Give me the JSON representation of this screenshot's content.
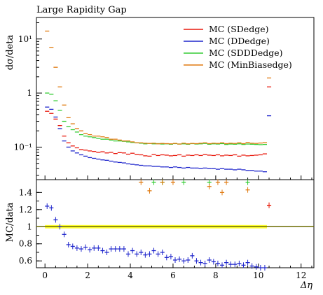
{
  "chart_data": {
    "type": "scatter",
    "title": "Large Rapidity Gap",
    "xlabel": "Δη",
    "xlim": [
      -0.4,
      12.6
    ],
    "xticks": [
      "0",
      "2",
      "4",
      "6",
      "8",
      "10",
      "12"
    ],
    "legend_position": "top-right",
    "main": {
      "ylabel": "dσ/deta",
      "yscale": "log",
      "ylim": [
        0.025,
        25
      ],
      "yticks": [
        "10⁻¹",
        "1",
        "10¹"
      ]
    },
    "ratio": {
      "ylabel": "MC/data",
      "ylim": [
        0.52,
        1.55
      ],
      "yticks": [
        "0.6",
        "0.8",
        "1",
        "1.2",
        "1.4"
      ],
      "reference_value": 1.0,
      "reference_color": "#6b6b00",
      "band_color": "#ffff33",
      "band_range": [
        0,
        10.4
      ]
    },
    "series": [
      {
        "name": "MC (SDedge)",
        "color": "#e8190d",
        "points": [
          [
            0.1,
            0.46
          ],
          [
            0.3,
            0.42
          ],
          [
            0.5,
            0.33
          ],
          [
            0.7,
            0.25
          ],
          [
            0.9,
            0.16
          ],
          [
            1.1,
            0.12
          ],
          [
            1.3,
            0.105
          ],
          [
            1.5,
            0.097
          ],
          [
            1.7,
            0.09
          ],
          [
            1.9,
            0.088
          ],
          [
            2.1,
            0.085
          ],
          [
            2.3,
            0.083
          ],
          [
            2.5,
            0.08
          ],
          [
            2.7,
            0.082
          ],
          [
            2.9,
            0.078
          ],
          [
            3.1,
            0.08
          ],
          [
            3.3,
            0.076
          ],
          [
            3.5,
            0.079
          ],
          [
            3.7,
            0.078
          ],
          [
            3.9,
            0.074
          ],
          [
            4.1,
            0.077
          ],
          [
            4.3,
            0.073
          ],
          [
            4.5,
            0.072
          ],
          [
            4.7,
            0.069
          ],
          [
            4.9,
            0.068
          ],
          [
            5.1,
            0.073
          ],
          [
            5.3,
            0.07
          ],
          [
            5.5,
            0.072
          ],
          [
            5.7,
            0.071
          ],
          [
            5.9,
            0.069
          ],
          [
            6.1,
            0.07
          ],
          [
            6.3,
            0.072
          ],
          [
            6.5,
            0.068
          ],
          [
            6.7,
            0.071
          ],
          [
            6.9,
            0.07
          ],
          [
            7.1,
            0.072
          ],
          [
            7.3,
            0.07
          ],
          [
            7.5,
            0.073
          ],
          [
            7.7,
            0.071
          ],
          [
            7.9,
            0.07
          ],
          [
            8.1,
            0.072
          ],
          [
            8.3,
            0.069
          ],
          [
            8.5,
            0.071
          ],
          [
            8.7,
            0.07
          ],
          [
            8.9,
            0.072
          ],
          [
            9.1,
            0.068
          ],
          [
            9.3,
            0.071
          ],
          [
            9.5,
            0.069
          ],
          [
            9.7,
            0.07
          ],
          [
            9.9,
            0.071
          ],
          [
            10.1,
            0.072
          ],
          [
            10.3,
            0.075
          ],
          [
            10.5,
            1.3
          ]
        ]
      },
      {
        "name": "MC (DDedge)",
        "color": "#1f26cc",
        "points": [
          [
            0.1,
            0.55
          ],
          [
            0.3,
            0.5
          ],
          [
            0.5,
            0.36
          ],
          [
            0.7,
            0.22
          ],
          [
            0.9,
            0.13
          ],
          [
            1.1,
            0.1
          ],
          [
            1.3,
            0.085
          ],
          [
            1.5,
            0.078
          ],
          [
            1.7,
            0.072
          ],
          [
            1.9,
            0.068
          ],
          [
            2.1,
            0.064
          ],
          [
            2.3,
            0.062
          ],
          [
            2.5,
            0.06
          ],
          [
            2.7,
            0.058
          ],
          [
            2.9,
            0.057
          ],
          [
            3.1,
            0.055
          ],
          [
            3.3,
            0.053
          ],
          [
            3.5,
            0.052
          ],
          [
            3.7,
            0.051
          ],
          [
            3.9,
            0.049
          ],
          [
            4.1,
            0.048
          ],
          [
            4.3,
            0.047
          ],
          [
            4.5,
            0.046
          ],
          [
            4.7,
            0.045
          ],
          [
            4.9,
            0.045
          ],
          [
            5.1,
            0.044
          ],
          [
            5.3,
            0.044
          ],
          [
            5.5,
            0.043
          ],
          [
            5.7,
            0.043
          ],
          [
            5.9,
            0.042
          ],
          [
            6.1,
            0.043
          ],
          [
            6.3,
            0.042
          ],
          [
            6.5,
            0.041
          ],
          [
            6.7,
            0.042
          ],
          [
            6.9,
            0.041
          ],
          [
            7.1,
            0.041
          ],
          [
            7.3,
            0.04
          ],
          [
            7.5,
            0.041
          ],
          [
            7.7,
            0.04
          ],
          [
            7.9,
            0.04
          ],
          [
            8.1,
            0.039
          ],
          [
            8.3,
            0.04
          ],
          [
            8.5,
            0.039
          ],
          [
            8.7,
            0.039
          ],
          [
            8.9,
            0.038
          ],
          [
            9.1,
            0.039
          ],
          [
            9.3,
            0.038
          ],
          [
            9.5,
            0.037
          ],
          [
            9.7,
            0.037
          ],
          [
            9.9,
            0.036
          ],
          [
            10.1,
            0.036
          ],
          [
            10.3,
            0.035
          ],
          [
            10.5,
            0.38
          ]
        ]
      },
      {
        "name": "MC (SDDDedge)",
        "color": "#33cc33",
        "points": [
          [
            0.1,
            1.0
          ],
          [
            0.3,
            0.95
          ],
          [
            0.5,
            0.72
          ],
          [
            0.7,
            0.48
          ],
          [
            0.9,
            0.3
          ],
          [
            1.1,
            0.24
          ],
          [
            1.3,
            0.21
          ],
          [
            1.5,
            0.19
          ],
          [
            1.7,
            0.17
          ],
          [
            1.9,
            0.16
          ],
          [
            2.1,
            0.155
          ],
          [
            2.3,
            0.15
          ],
          [
            2.5,
            0.145
          ],
          [
            2.7,
            0.14
          ],
          [
            2.9,
            0.14
          ],
          [
            3.1,
            0.135
          ],
          [
            3.3,
            0.13
          ],
          [
            3.5,
            0.13
          ],
          [
            3.7,
            0.128
          ],
          [
            3.9,
            0.125
          ],
          [
            4.1,
            0.122
          ],
          [
            4.3,
            0.12
          ],
          [
            4.5,
            0.118
          ],
          [
            4.7,
            0.115
          ],
          [
            4.9,
            0.117
          ],
          [
            5.1,
            0.115
          ],
          [
            5.3,
            0.116
          ],
          [
            5.5,
            0.114
          ],
          [
            5.7,
            0.115
          ],
          [
            5.9,
            0.113
          ],
          [
            6.1,
            0.116
          ],
          [
            6.3,
            0.114
          ],
          [
            6.5,
            0.115
          ],
          [
            6.7,
            0.113
          ],
          [
            6.9,
            0.116
          ],
          [
            7.1,
            0.114
          ],
          [
            7.3,
            0.115
          ],
          [
            7.5,
            0.117
          ],
          [
            7.7,
            0.113
          ],
          [
            7.9,
            0.115
          ],
          [
            8.1,
            0.114
          ],
          [
            8.3,
            0.116
          ],
          [
            8.5,
            0.112
          ],
          [
            8.7,
            0.114
          ],
          [
            8.9,
            0.113
          ],
          [
            9.1,
            0.115
          ],
          [
            9.3,
            0.112
          ],
          [
            9.5,
            0.114
          ],
          [
            9.7,
            0.113
          ],
          [
            9.9,
            0.112
          ],
          [
            10.1,
            0.111
          ],
          [
            10.3,
            0.112
          ]
        ]
      },
      {
        "name": "MC (MinBiasedge)",
        "color": "#e07a10",
        "points": [
          [
            0.1,
            14.0
          ],
          [
            0.3,
            7.0
          ],
          [
            0.5,
            3.0
          ],
          [
            0.7,
            1.3
          ],
          [
            0.9,
            0.6
          ],
          [
            1.1,
            0.35
          ],
          [
            1.3,
            0.27
          ],
          [
            1.5,
            0.22
          ],
          [
            1.7,
            0.2
          ],
          [
            1.9,
            0.18
          ],
          [
            2.1,
            0.17
          ],
          [
            2.3,
            0.16
          ],
          [
            2.5,
            0.16
          ],
          [
            2.7,
            0.155
          ],
          [
            2.9,
            0.15
          ],
          [
            3.1,
            0.14
          ],
          [
            3.3,
            0.14
          ],
          [
            3.5,
            0.135
          ],
          [
            3.7,
            0.13
          ],
          [
            3.9,
            0.13
          ],
          [
            4.1,
            0.125
          ],
          [
            4.3,
            0.12
          ],
          [
            4.5,
            0.12
          ],
          [
            4.7,
            0.118
          ],
          [
            4.9,
            0.117
          ],
          [
            5.1,
            0.118
          ],
          [
            5.3,
            0.115
          ],
          [
            5.5,
            0.117
          ],
          [
            5.7,
            0.116
          ],
          [
            5.9,
            0.115
          ],
          [
            6.1,
            0.117
          ],
          [
            6.3,
            0.114
          ],
          [
            6.5,
            0.118
          ],
          [
            6.7,
            0.115
          ],
          [
            6.9,
            0.117
          ],
          [
            7.1,
            0.116
          ],
          [
            7.3,
            0.118
          ],
          [
            7.5,
            0.12
          ],
          [
            7.7,
            0.116
          ],
          [
            7.9,
            0.118
          ],
          [
            8.1,
            0.117
          ],
          [
            8.3,
            0.12
          ],
          [
            8.5,
            0.116
          ],
          [
            8.7,
            0.118
          ],
          [
            8.9,
            0.117
          ],
          [
            9.1,
            0.12
          ],
          [
            9.3,
            0.116
          ],
          [
            9.5,
            0.122
          ],
          [
            9.7,
            0.118
          ],
          [
            9.9,
            0.117
          ],
          [
            10.1,
            0.119
          ],
          [
            10.3,
            0.121
          ],
          [
            10.5,
            1.9
          ]
        ]
      }
    ],
    "ratio_series": [
      {
        "name": "MC (DDedge)",
        "color": "#1f26cc",
        "points": [
          [
            0.1,
            1.24
          ],
          [
            0.3,
            1.22
          ],
          [
            0.5,
            1.08
          ],
          [
            0.7,
            1.0
          ],
          [
            0.9,
            0.91
          ],
          [
            1.1,
            0.79
          ],
          [
            1.3,
            0.77
          ],
          [
            1.5,
            0.75
          ],
          [
            1.7,
            0.74
          ],
          [
            1.9,
            0.76
          ],
          [
            2.1,
            0.73
          ],
          [
            2.3,
            0.75
          ],
          [
            2.5,
            0.75
          ],
          [
            2.7,
            0.72
          ],
          [
            2.9,
            0.7
          ],
          [
            3.1,
            0.74
          ],
          [
            3.3,
            0.74
          ],
          [
            3.5,
            0.74
          ],
          [
            3.7,
            0.74
          ],
          [
            3.9,
            0.68
          ],
          [
            4.1,
            0.72
          ],
          [
            4.3,
            0.68
          ],
          [
            4.5,
            0.7
          ],
          [
            4.7,
            0.67
          ],
          [
            4.9,
            0.68
          ],
          [
            5.1,
            0.72
          ],
          [
            5.3,
            0.68
          ],
          [
            5.5,
            0.7
          ],
          [
            5.7,
            0.64
          ],
          [
            5.9,
            0.65
          ],
          [
            6.1,
            0.61
          ],
          [
            6.3,
            0.62
          ],
          [
            6.5,
            0.6
          ],
          [
            6.7,
            0.61
          ],
          [
            6.9,
            0.66
          ],
          [
            7.1,
            0.6
          ],
          [
            7.3,
            0.58
          ],
          [
            7.5,
            0.57
          ],
          [
            7.7,
            0.61
          ],
          [
            7.9,
            0.59
          ],
          [
            8.1,
            0.57
          ],
          [
            8.3,
            0.55
          ],
          [
            8.5,
            0.58
          ],
          [
            8.7,
            0.56
          ],
          [
            8.9,
            0.56
          ],
          [
            9.1,
            0.57
          ],
          [
            9.3,
            0.55
          ],
          [
            9.5,
            0.58
          ],
          [
            9.7,
            0.54
          ],
          [
            9.9,
            0.53
          ],
          [
            10.1,
            0.52
          ],
          [
            10.3,
            0.52
          ]
        ]
      },
      {
        "name": "MC (SDDDedge)",
        "color": "#33cc33",
        "points": [
          [
            5.1,
            1.52
          ],
          [
            5.5,
            1.52
          ],
          [
            6.5,
            1.52
          ],
          [
            7.7,
            1.52
          ],
          [
            9.5,
            1.52
          ]
        ]
      },
      {
        "name": "MC (MinBiasedge)",
        "color": "#e07a10",
        "points": [
          [
            4.5,
            1.52
          ],
          [
            4.9,
            1.42
          ],
          [
            5.5,
            1.52
          ],
          [
            6.0,
            1.52
          ],
          [
            7.7,
            1.47
          ],
          [
            8.1,
            1.52
          ],
          [
            8.3,
            1.4
          ],
          [
            8.5,
            1.52
          ],
          [
            9.5,
            1.43
          ],
          [
            10.5,
            1.25
          ]
        ]
      },
      {
        "name": "MC (SDedge)",
        "color": "#e8190d",
        "points": [
          [
            10.5,
            1.25
          ]
        ]
      }
    ]
  }
}
